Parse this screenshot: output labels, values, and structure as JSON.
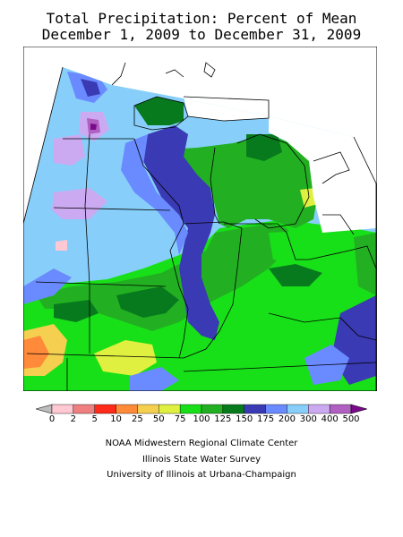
{
  "title": {
    "line1": "Total Precipitation: Percent of Mean",
    "line2": "December 1, 2009 to December 31, 2009"
  },
  "legend": {
    "ticks": [
      "0",
      "2",
      "5",
      "10",
      "25",
      "50",
      "75",
      "100",
      "125",
      "150",
      "175",
      "200",
      "300",
      "400",
      "500"
    ],
    "colors": [
      "#bdbdbd",
      "#ffc8d2",
      "#f08080",
      "#ff2a1a",
      "#ff8a3a",
      "#f5d050",
      "#e0f040",
      "#18e018",
      "#22b022",
      "#087a1e",
      "#3a3ab4",
      "#6a8aff",
      "#87cefa",
      "#ccaaf2",
      "#b060c0",
      "#7a0a8a"
    ]
  },
  "credits": {
    "line1": "NOAA Midwestern Regional Climate Center",
    "line2": "Illinois State Water Survey",
    "line3": "University of Illinois at Urbana-Champaign"
  }
}
